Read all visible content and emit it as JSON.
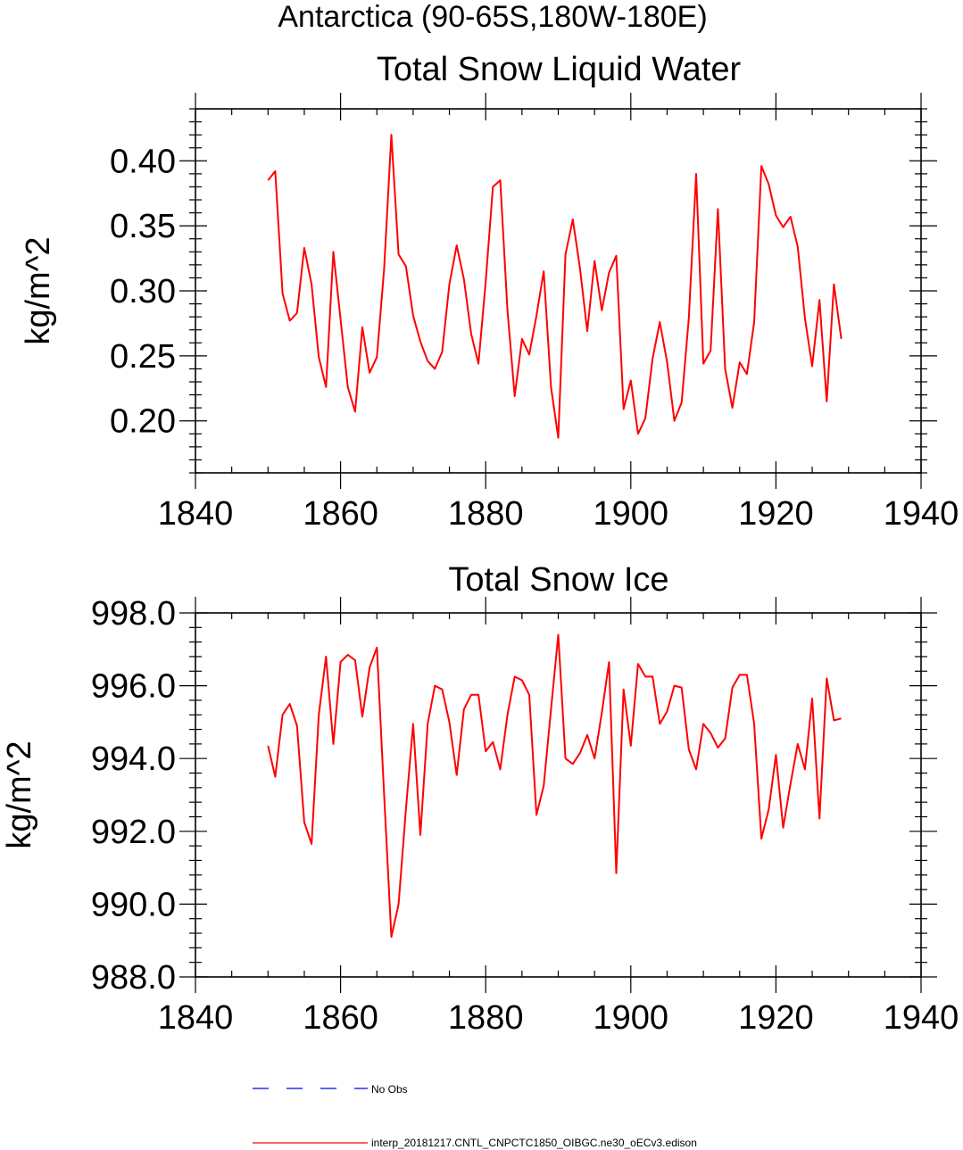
{
  "figure": {
    "title": "Antarctica (90-65S,180W-180E)"
  },
  "chart_data": [
    {
      "type": "line",
      "title": "Total Snow Liquid Water",
      "xlabel": "",
      "ylabel": "kg/m^2",
      "xlim": [
        1840,
        1940
      ],
      "ylim": [
        0.16,
        0.44
      ],
      "x_ticks": [
        1840,
        1860,
        1880,
        1900,
        1920,
        1940
      ],
      "x_tick_labels": [
        "1840",
        "1860",
        "1880",
        "1900",
        "1920",
        "1940"
      ],
      "y_ticks": [
        0.2,
        0.25,
        0.3,
        0.35,
        0.4
      ],
      "y_tick_labels": [
        "0.20",
        "0.25",
        "0.30",
        "0.35",
        "0.40"
      ],
      "color": "#ff0000",
      "x": [
        1850,
        1851,
        1852,
        1853,
        1854,
        1855,
        1856,
        1857,
        1858,
        1859,
        1860,
        1861,
        1862,
        1863,
        1864,
        1865,
        1866,
        1867,
        1868,
        1869,
        1870,
        1871,
        1872,
        1873,
        1874,
        1875,
        1876,
        1877,
        1878,
        1879,
        1880,
        1881,
        1882,
        1883,
        1884,
        1885,
        1886,
        1887,
        1888,
        1889,
        1890,
        1891,
        1892,
        1893,
        1894,
        1895,
        1896,
        1897,
        1898,
        1899,
        1900,
        1901,
        1902,
        1903,
        1904,
        1905,
        1906,
        1907,
        1908,
        1909,
        1910,
        1911,
        1912,
        1913,
        1914,
        1915,
        1916,
        1917,
        1918,
        1919,
        1920,
        1921,
        1922,
        1923,
        1924,
        1925,
        1926,
        1927,
        1928,
        1929
      ],
      "y": [
        0.385,
        0.392,
        0.298,
        0.277,
        0.283,
        0.333,
        0.305,
        0.249,
        0.226,
        0.33,
        0.278,
        0.226,
        0.207,
        0.272,
        0.237,
        0.249,
        0.317,
        0.42,
        0.328,
        0.319,
        0.281,
        0.261,
        0.246,
        0.24,
        0.253,
        0.305,
        0.335,
        0.309,
        0.267,
        0.244,
        0.307,
        0.38,
        0.385,
        0.285,
        0.219,
        0.263,
        0.251,
        0.281,
        0.315,
        0.226,
        0.187,
        0.328,
        0.355,
        0.317,
        0.269,
        0.323,
        0.285,
        0.314,
        0.327,
        0.209,
        0.231,
        0.19,
        0.202,
        0.248,
        0.276,
        0.245,
        0.2,
        0.214,
        0.279,
        0.39,
        0.244,
        0.254,
        0.363,
        0.24,
        0.21,
        0.245,
        0.236,
        0.276,
        0.396,
        0.382,
        0.358,
        0.349,
        0.357,
        0.334,
        0.279,
        0.242,
        0.293,
        0.215,
        0.305,
        0.263
      ]
    },
    {
      "type": "line",
      "title": "Total Snow Ice",
      "xlabel": "",
      "ylabel": "kg/m^2",
      "xlim": [
        1840,
        1940
      ],
      "ylim": [
        988.0,
        998.0
      ],
      "x_ticks": [
        1840,
        1860,
        1880,
        1900,
        1920,
        1940
      ],
      "x_tick_labels": [
        "1840",
        "1860",
        "1880",
        "1900",
        "1920",
        "1940"
      ],
      "y_ticks": [
        988.0,
        990.0,
        992.0,
        994.0,
        996.0,
        998.0
      ],
      "y_tick_labels": [
        "988.0",
        "990.0",
        "992.0",
        "994.0",
        "996.0",
        "998.0"
      ],
      "color": "#ff0000",
      "x": [
        1850,
        1851,
        1852,
        1853,
        1854,
        1855,
        1856,
        1857,
        1858,
        1859,
        1860,
        1861,
        1862,
        1863,
        1864,
        1865,
        1866,
        1867,
        1868,
        1869,
        1870,
        1871,
        1872,
        1873,
        1874,
        1875,
        1876,
        1877,
        1878,
        1879,
        1880,
        1881,
        1882,
        1883,
        1884,
        1885,
        1886,
        1887,
        1888,
        1889,
        1890,
        1891,
        1892,
        1893,
        1894,
        1895,
        1896,
        1897,
        1898,
        1899,
        1900,
        1901,
        1902,
        1903,
        1904,
        1905,
        1906,
        1907,
        1908,
        1909,
        1910,
        1911,
        1912,
        1913,
        1914,
        1915,
        1916,
        1917,
        1918,
        1919,
        1920,
        1921,
        1922,
        1923,
        1924,
        1925,
        1926,
        1927,
        1928,
        1929
      ],
      "y": [
        994.35,
        993.5,
        995.2,
        995.5,
        994.9,
        992.25,
        991.65,
        995.2,
        996.8,
        994.4,
        996.65,
        996.85,
        996.7,
        995.15,
        996.5,
        997.05,
        993.0,
        989.1,
        990.0,
        992.6,
        994.95,
        991.9,
        994.95,
        996.0,
        995.9,
        995.0,
        993.55,
        995.35,
        995.75,
        995.75,
        994.2,
        994.45,
        993.7,
        995.2,
        996.25,
        996.15,
        995.75,
        992.45,
        993.25,
        995.35,
        997.4,
        994.0,
        993.85,
        994.15,
        994.65,
        994.0,
        995.25,
        996.65,
        990.85,
        995.9,
        994.35,
        996.6,
        996.25,
        996.25,
        994.95,
        995.3,
        996.0,
        995.95,
        994.25,
        993.7,
        994.95,
        994.7,
        994.3,
        994.55,
        995.95,
        996.3,
        996.3,
        994.95,
        991.8,
        992.6,
        994.1,
        992.1,
        993.3,
        994.4,
        993.7,
        995.65,
        992.35,
        996.2,
        995.05,
        995.1
      ]
    }
  ],
  "legend": {
    "entries": [
      {
        "label": "No Obs",
        "color": "#0000ff",
        "style": "dashed"
      },
      {
        "label": "interp_20181217.CNTL_CNPCTC1850_OIBGC.ne30_oECv3.edison",
        "color": "#ff0000",
        "style": "solid"
      }
    ]
  }
}
